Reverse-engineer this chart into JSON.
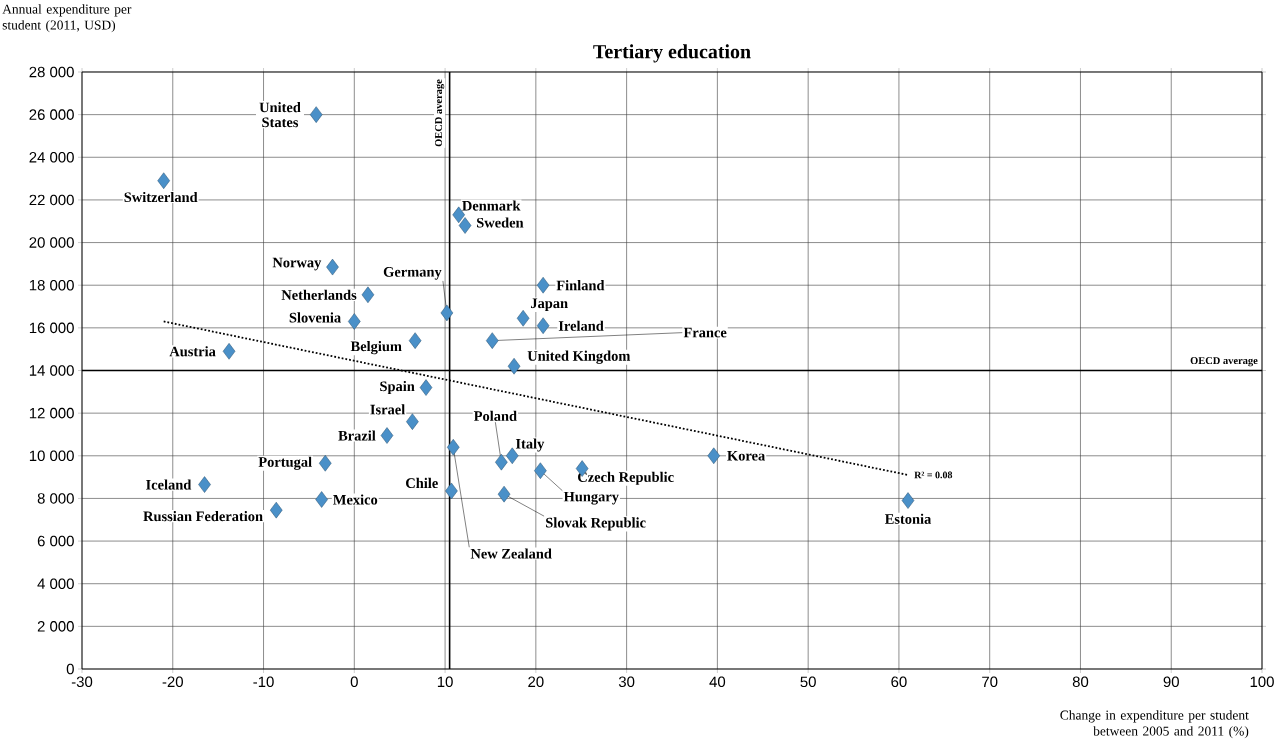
{
  "chart_data": {
    "type": "scatter",
    "title": "Tertiary education",
    "xlabel": "Change in expenditure per student between 2005 and 2011 (%)",
    "ylabel": "Annual expenditure per student  (2011, USD)",
    "xlim": [
      -30,
      100
    ],
    "xticks": [
      -30,
      -20,
      -10,
      0,
      10,
      20,
      30,
      40,
      50,
      60,
      70,
      80,
      90,
      100
    ],
    "ylim": [
      0,
      28000
    ],
    "yticks": [
      0,
      {
        "value": 2000,
        "label": "2 000"
      },
      {
        "value": 4000,
        "label": "4 000"
      },
      {
        "value": 6000,
        "label": "6 000"
      },
      {
        "value": 8000,
        "label": "8 000"
      },
      {
        "value": 10000,
        "label": "10 000"
      },
      {
        "value": 12000,
        "label": "12 000"
      },
      {
        "value": 14000,
        "label": "14 000"
      },
      {
        "value": 16000,
        "label": "16 000"
      },
      {
        "value": 18000,
        "label": "18 000"
      },
      {
        "value": 20000,
        "label": "20 000"
      },
      {
        "value": 22000,
        "label": "22 000"
      },
      {
        "value": 24000,
        "label": "24 000"
      },
      {
        "value": 26000,
        "label": "26 000"
      },
      {
        "value": 28000,
        "label": "28 000"
      }
    ],
    "grid": true,
    "marker": "diamond",
    "series": [
      {
        "color": "#4a90c8",
        "x": [
          -4.2,
          -21.0,
          11.5,
          12.2,
          -2.4,
          20.8,
          1.5,
          10.2,
          18.6,
          0.0,
          20.8,
          6.7,
          15.2,
          -13.8,
          17.6,
          7.9,
          6.4,
          3.6,
          10.9,
          17.4,
          39.6,
          16.2,
          -3.2,
          25.1,
          20.5,
          -16.5,
          10.7,
          16.5,
          -3.6,
          61.0,
          -8.6
        ],
        "values": [
          26000,
          22900,
          21300,
          20800,
          18850,
          18000,
          17550,
          16700,
          16450,
          16300,
          16100,
          15400,
          15400,
          14900,
          14200,
          13200,
          11600,
          10950,
          10400,
          10000,
          10000,
          9700,
          9650,
          9400,
          9300,
          8650,
          8350,
          8200,
          7950,
          7900,
          7450
        ]
      },
      {
        "type": "line",
        "color": "#000000",
        "line_style": "dotted",
        "marker": "none",
        "x": [
          -21,
          61
        ],
        "values": [
          16300,
          9100
        ]
      }
    ],
    "ref_lines": [
      {
        "axis": "x",
        "value": 10.5,
        "label": "OECD average"
      },
      {
        "axis": "y",
        "value": 14000,
        "label": "OECD average"
      }
    ],
    "annotations": [
      {
        "text": "United States",
        "x": -4.2,
        "y": 26000
      },
      {
        "text": "Switzerland",
        "x": -21.0,
        "y": 22900
      },
      {
        "text": "Denmark",
        "x": 11.5,
        "y": 21300
      },
      {
        "text": "Sweden",
        "x": 12.2,
        "y": 20800
      },
      {
        "text": "Norway",
        "x": -2.4,
        "y": 18850
      },
      {
        "text": "Finland",
        "x": 20.8,
        "y": 18000
      },
      {
        "text": "Netherlands",
        "x": 1.5,
        "y": 17550
      },
      {
        "text": "Germany",
        "x": 10.2,
        "y": 16700
      },
      {
        "text": "Japan",
        "x": 18.6,
        "y": 16450
      },
      {
        "text": "Slovenia",
        "x": 0.0,
        "y": 16300
      },
      {
        "text": "Ireland",
        "x": 20.8,
        "y": 16100
      },
      {
        "text": "Belgium",
        "x": 6.7,
        "y": 15400
      },
      {
        "text": "France",
        "x": 15.2,
        "y": 15400
      },
      {
        "text": "Austria",
        "x": -13.8,
        "y": 14900
      },
      {
        "text": "United Kingdom",
        "x": 17.6,
        "y": 14200
      },
      {
        "text": "Spain",
        "x": 7.9,
        "y": 13200
      },
      {
        "text": "Israel",
        "x": 6.4,
        "y": 11600
      },
      {
        "text": "Brazil",
        "x": 3.6,
        "y": 10950
      },
      {
        "text": "New Zealand",
        "x": 10.9,
        "y": 10400
      },
      {
        "text": "Italy",
        "x": 17.4,
        "y": 10000
      },
      {
        "text": "Korea",
        "x": 39.6,
        "y": 10000
      },
      {
        "text": "Poland",
        "x": 16.2,
        "y": 9700
      },
      {
        "text": "Portugal",
        "x": -3.2,
        "y": 9650
      },
      {
        "text": "Czech Republic",
        "x": 25.1,
        "y": 9400
      },
      {
        "text": "Hungary",
        "x": 20.5,
        "y": 9300
      },
      {
        "text": "Iceland",
        "x": -16.5,
        "y": 8650
      },
      {
        "text": "Chile",
        "x": 10.7,
        "y": 8350
      },
      {
        "text": "Slovak Republic",
        "x": 16.5,
        "y": 8200
      },
      {
        "text": "Mexico",
        "x": -3.6,
        "y": 7950
      },
      {
        "text": "Estonia",
        "x": 61.0,
        "y": 7900
      },
      {
        "text": "Russian Federation",
        "x": -8.6,
        "y": 7450
      },
      {
        "text": "R² = 0.08",
        "x": 61,
        "y": 9100
      }
    ]
  }
}
